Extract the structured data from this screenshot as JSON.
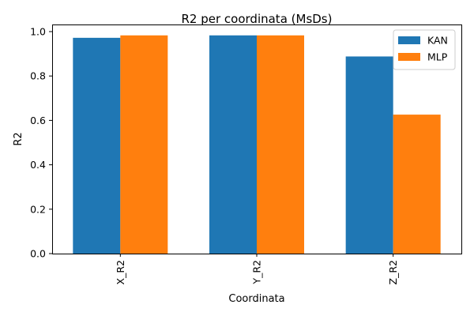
{
  "chart_data": {
    "type": "bar",
    "title": "R2 per coordinata (MsDs)",
    "xlabel": "Coordinata",
    "ylabel": "R2",
    "categories": [
      "X_R2",
      "Y_R2",
      "Z_R2"
    ],
    "series": [
      {
        "name": "KAN",
        "values": [
          0.972,
          0.983,
          0.888
        ],
        "color": "#1f77b4"
      },
      {
        "name": "MLP",
        "values": [
          0.983,
          0.983,
          0.626
        ],
        "color": "#ff7f0e"
      }
    ],
    "ylim": [
      0,
      1.032
    ],
    "yticks": [
      "0.0",
      "0.2",
      "0.4",
      "0.6",
      "0.8",
      "1.0"
    ],
    "grid": false,
    "legend_position": "top-right",
    "x_tick_rotation": "vertical"
  }
}
